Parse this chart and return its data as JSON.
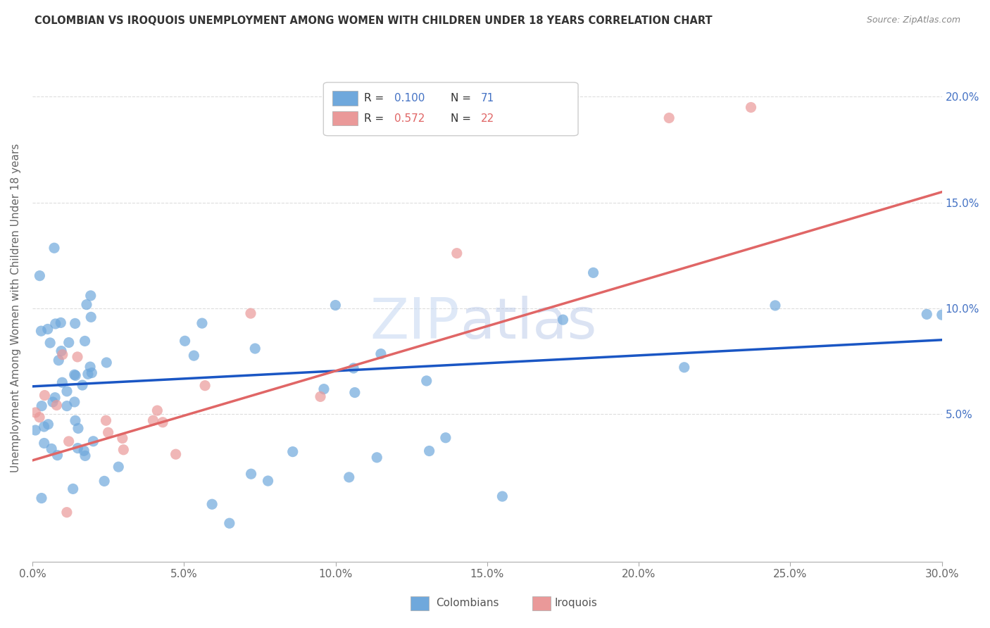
{
  "title": "COLOMBIAN VS IROQUOIS UNEMPLOYMENT AMONG WOMEN WITH CHILDREN UNDER 18 YEARS CORRELATION CHART",
  "source": "Source: ZipAtlas.com",
  "ylabel": "Unemployment Among Women with Children Under 18 years",
  "xlim": [
    0.0,
    0.3
  ],
  "ylim": [
    -0.02,
    0.22
  ],
  "yticks": [
    0.05,
    0.1,
    0.15,
    0.2
  ],
  "ytick_labels": [
    "5.0%",
    "10.0%",
    "15.0%",
    "20.0%"
  ],
  "xticks": [
    0.0,
    0.05,
    0.1,
    0.15,
    0.2,
    0.25,
    0.3
  ],
  "xtick_labels": [
    "0.0%",
    "5.0%",
    "10.0%",
    "15.0%",
    "20.0%",
    "25.0%",
    "30.0%"
  ],
  "colombian_color": "#6fa8dc",
  "iroquois_color": "#ea9999",
  "colombian_line_color": "#1a56c4",
  "iroquois_line_color": "#e06666",
  "legend_r_colombian": "R = 0.100",
  "legend_n_colombian": "N = 71",
  "legend_r_iroquois": "R = 0.572",
  "legend_n_iroquois": "N = 22",
  "watermark_zip": "ZIP",
  "watermark_atlas": "atlas",
  "background_color": "#ffffff",
  "grid_color": "#cccccc",
  "blue_line_x0": 0.0,
  "blue_line_y0": 0.063,
  "blue_line_x1": 0.3,
  "blue_line_y1": 0.085,
  "pink_line_x0": 0.0,
  "pink_line_y0": 0.028,
  "pink_line_x1": 0.3,
  "pink_line_y1": 0.155
}
